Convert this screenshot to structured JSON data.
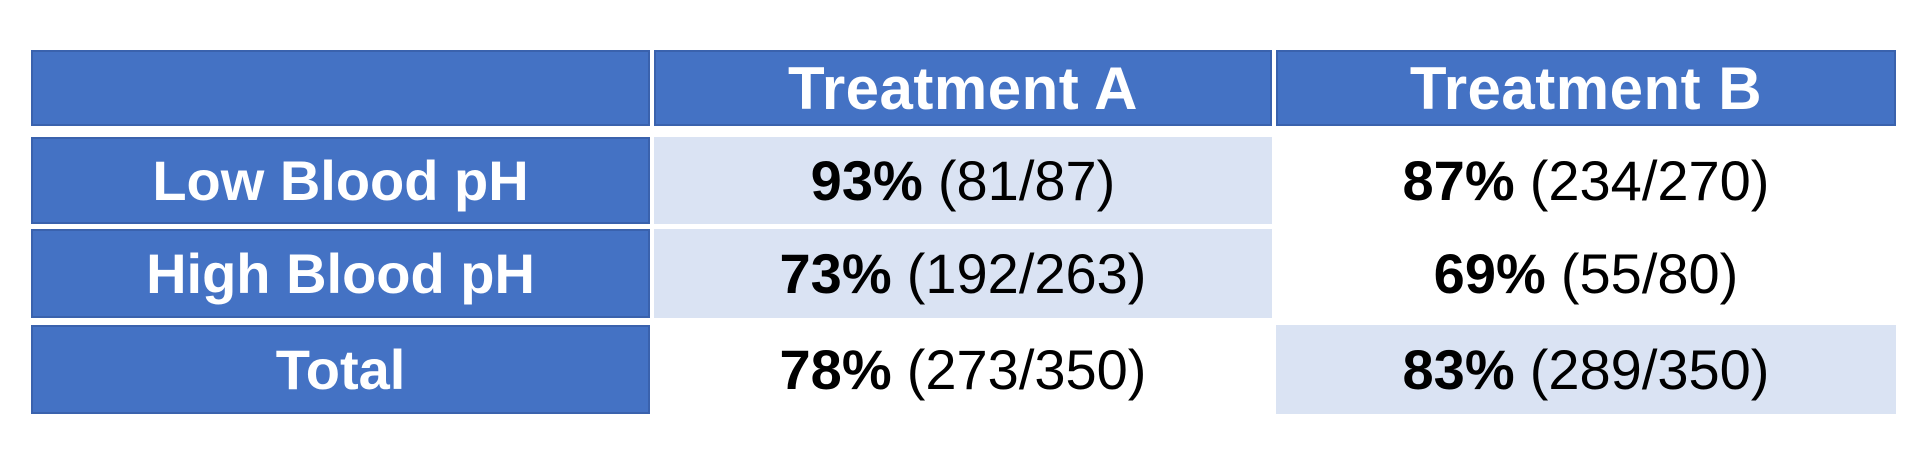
{
  "colors": {
    "background": "#ffffff",
    "header_blue": "#4472C4",
    "header_border": "#3A62AD",
    "header_text": "#ffffff",
    "highlight_blue": "#DAE3F3",
    "data_text": "#000000"
  },
  "table": {
    "corner_label": "",
    "columns": [
      "Treatment A",
      "Treatment B"
    ],
    "rows": [
      {
        "label": "Low Blood pH",
        "treatment_a": {
          "pct": "93%",
          "frac": "(81/87)",
          "highlighted": true
        },
        "treatment_b": {
          "pct": "87%",
          "frac": "(234/270)",
          "highlighted": false
        }
      },
      {
        "label": "High Blood pH",
        "treatment_a": {
          "pct": "73%",
          "frac": "(192/263)",
          "highlighted": true
        },
        "treatment_b": {
          "pct": "69%",
          "frac": "(55/80)",
          "highlighted": false
        }
      },
      {
        "label": "Total",
        "treatment_a": {
          "pct": "78%",
          "frac": "(273/350)",
          "highlighted": false
        },
        "treatment_b": {
          "pct": "83%",
          "frac": "(289/350)",
          "highlighted": true
        }
      }
    ]
  },
  "chart_data": {
    "type": "table",
    "title": "",
    "columns": [
      "",
      "Treatment A",
      "Treatment B"
    ],
    "row_labels": [
      "Low Blood pH",
      "High Blood pH",
      "Total"
    ],
    "cells": [
      {
        "row": "Low Blood pH",
        "treatment_a_pct": 93,
        "treatment_a_success": 81,
        "treatment_a_n": 87,
        "treatment_b_pct": 87,
        "treatment_b_success": 234,
        "treatment_b_n": 270
      },
      {
        "row": "High Blood pH",
        "treatment_a_pct": 73,
        "treatment_a_success": 192,
        "treatment_a_n": 263,
        "treatment_b_pct": 69,
        "treatment_b_success": 55,
        "treatment_b_n": 80
      },
      {
        "row": "Total",
        "treatment_a_pct": 78,
        "treatment_a_success": 273,
        "treatment_a_n": 350,
        "treatment_b_pct": 83,
        "treatment_b_success": 289,
        "treatment_b_n": 350
      }
    ],
    "highlighted_cells": [
      [
        "Low Blood pH",
        "Treatment A"
      ],
      [
        "High Blood pH",
        "Treatment A"
      ],
      [
        "Total",
        "Treatment B"
      ]
    ],
    "legend_position": "none",
    "grid": false
  }
}
